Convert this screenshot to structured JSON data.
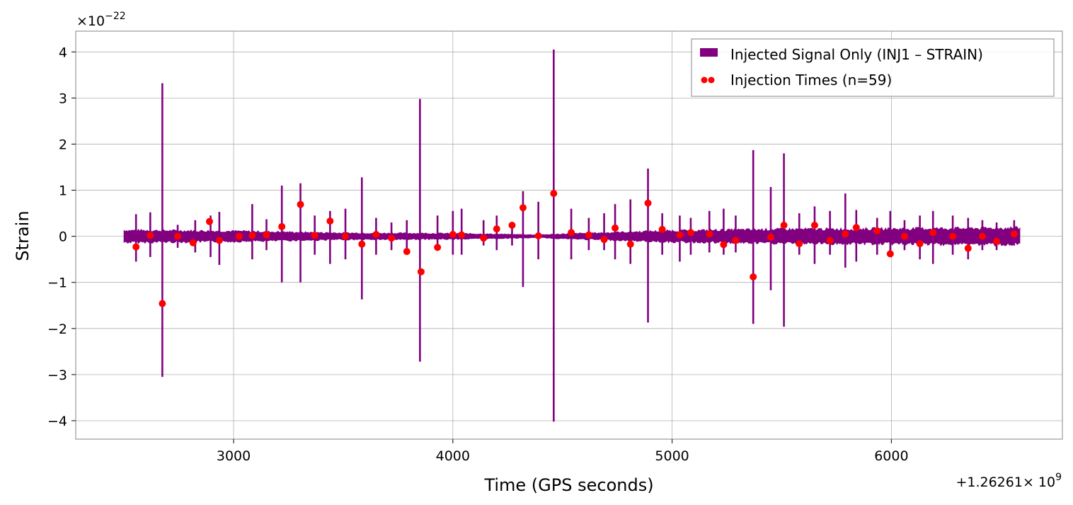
{
  "chart_data": {
    "type": "line",
    "xlabel": "Time (GPS seconds)",
    "ylabel": "Strain",
    "x_offset_label": "+1.26261",
    "x_offset_label_exp_base": "× 10",
    "x_offset_label_exp": "9",
    "y_multiplier_label": "×10",
    "y_multiplier_label_exp": "−22",
    "xlim": [
      2280,
      6780
    ],
    "ylim": [
      -4.4,
      4.45
    ],
    "x_ticks": [
      3000,
      4000,
      5000,
      6000
    ],
    "x_tick_labels": [
      "3000",
      "4000",
      "5000",
      "6000"
    ],
    "y_ticks": [
      4,
      3,
      2,
      1,
      0,
      -1,
      -2,
      -3,
      -4
    ],
    "y_tick_labels": [
      "4",
      "3",
      "2",
      "1",
      "0",
      "−1",
      "−2",
      "−3",
      "−4"
    ],
    "grid": true,
    "legend_position": "top-right",
    "signal_band": {
      "x_start": 2500,
      "x_end": 6590,
      "amplitude_points": [
        [
          2500,
          0.13
        ],
        [
          3000,
          0.11
        ],
        [
          3500,
          0.07
        ],
        [
          4000,
          0.06
        ],
        [
          4400,
          0.03
        ],
        [
          4500,
          0.05
        ],
        [
          5000,
          0.12
        ],
        [
          5500,
          0.15
        ],
        [
          6000,
          0.16
        ],
        [
          6590,
          0.18
        ]
      ]
    },
    "series": [
      {
        "name": "Injected Signal Only (INJ1 – STRAIN)",
        "kind": "line",
        "color": "#800080",
        "spikes": [
          [
            2555,
            0.48,
            -0.55
          ],
          [
            2620,
            0.52,
            -0.45
          ],
          [
            2675,
            3.32,
            -3.05
          ],
          [
            2745,
            0.25,
            -0.25
          ],
          [
            2825,
            0.35,
            -0.35
          ],
          [
            2895,
            0.45,
            -0.45
          ],
          [
            2935,
            0.53,
            -0.62
          ],
          [
            3085,
            0.7,
            -0.5
          ],
          [
            3150,
            0.37,
            -0.3
          ],
          [
            3220,
            1.1,
            -1.0
          ],
          [
            3305,
            1.15,
            -1.0
          ],
          [
            3370,
            0.45,
            -0.4
          ],
          [
            3440,
            0.55,
            -0.6
          ],
          [
            3510,
            0.6,
            -0.5
          ],
          [
            3585,
            1.28,
            -1.37
          ],
          [
            3650,
            0.4,
            -0.4
          ],
          [
            3720,
            0.3,
            -0.3
          ],
          [
            3790,
            0.35,
            -0.4
          ],
          [
            3850,
            2.98,
            -2.72
          ],
          [
            3930,
            0.45,
            -0.3
          ],
          [
            4000,
            0.55,
            -0.4
          ],
          [
            4040,
            0.6,
            -0.4
          ],
          [
            4140,
            0.35,
            -0.2
          ],
          [
            4200,
            0.45,
            -0.3
          ],
          [
            4270,
            0.3,
            -0.2
          ],
          [
            4320,
            0.98,
            -1.1
          ],
          [
            4390,
            0.75,
            -0.5
          ],
          [
            4460,
            4.05,
            -4.02
          ],
          [
            4540,
            0.6,
            -0.5
          ],
          [
            4620,
            0.4,
            -0.3
          ],
          [
            4690,
            0.5,
            -0.3
          ],
          [
            4740,
            0.7,
            -0.5
          ],
          [
            4810,
            0.8,
            -0.6
          ],
          [
            4890,
            1.47,
            -1.87
          ],
          [
            4955,
            0.5,
            -0.4
          ],
          [
            5035,
            0.45,
            -0.55
          ],
          [
            5085,
            0.4,
            -0.4
          ],
          [
            5170,
            0.55,
            -0.35
          ],
          [
            5235,
            0.6,
            -0.4
          ],
          [
            5290,
            0.45,
            -0.35
          ],
          [
            5370,
            1.87,
            -1.9
          ],
          [
            5450,
            1.07,
            -1.17
          ],
          [
            5510,
            1.8,
            -1.96
          ],
          [
            5580,
            0.5,
            -0.4
          ],
          [
            5650,
            0.65,
            -0.6
          ],
          [
            5720,
            0.55,
            -0.4
          ],
          [
            5790,
            0.93,
            -0.68
          ],
          [
            5840,
            0.57,
            -0.55
          ],
          [
            5935,
            0.4,
            -0.4
          ],
          [
            5995,
            0.55,
            -0.4
          ],
          [
            6060,
            0.35,
            -0.3
          ],
          [
            6130,
            0.45,
            -0.5
          ],
          [
            6190,
            0.55,
            -0.6
          ],
          [
            6280,
            0.45,
            -0.4
          ],
          [
            6350,
            0.4,
            -0.5
          ],
          [
            6415,
            0.35,
            -0.3
          ],
          [
            6480,
            0.3,
            -0.3
          ],
          [
            6560,
            0.35,
            -0.2
          ]
        ]
      },
      {
        "name": "Injection Times (n=59)",
        "kind": "scatter",
        "color": "#ff0000",
        "points": [
          [
            2555,
            -0.23
          ],
          [
            2620,
            0.02
          ],
          [
            2675,
            -1.46
          ],
          [
            2745,
            0.0
          ],
          [
            2815,
            -0.14
          ],
          [
            2890,
            0.32
          ],
          [
            2935,
            -0.09
          ],
          [
            3025,
            0.0
          ],
          [
            3085,
            0.02
          ],
          [
            3150,
            0.03
          ],
          [
            3220,
            0.21
          ],
          [
            3305,
            0.69
          ],
          [
            3370,
            0.02
          ],
          [
            3440,
            0.33
          ],
          [
            3510,
            0.0
          ],
          [
            3585,
            -0.17
          ],
          [
            3650,
            0.04
          ],
          [
            3720,
            -0.04
          ],
          [
            3790,
            -0.33
          ],
          [
            3855,
            -0.77
          ],
          [
            3930,
            -0.24
          ],
          [
            4000,
            0.04
          ],
          [
            4040,
            0.03
          ],
          [
            4140,
            -0.04
          ],
          [
            4200,
            0.16
          ],
          [
            4270,
            0.24
          ],
          [
            4320,
            0.62
          ],
          [
            4390,
            0.01
          ],
          [
            4460,
            0.93
          ],
          [
            4540,
            0.08
          ],
          [
            4620,
            0.03
          ],
          [
            4690,
            -0.07
          ],
          [
            4740,
            0.18
          ],
          [
            4810,
            -0.17
          ],
          [
            4890,
            0.72
          ],
          [
            4955,
            0.15
          ],
          [
            5035,
            0.03
          ],
          [
            5085,
            0.08
          ],
          [
            5170,
            0.05
          ],
          [
            5235,
            -0.18
          ],
          [
            5290,
            -0.09
          ],
          [
            5370,
            -0.88
          ],
          [
            5450,
            -0.02
          ],
          [
            5510,
            0.24
          ],
          [
            5580,
            -0.16
          ],
          [
            5650,
            0.24
          ],
          [
            5720,
            -0.09
          ],
          [
            5790,
            0.05
          ],
          [
            5840,
            0.19
          ],
          [
            5935,
            0.12
          ],
          [
            5995,
            -0.38
          ],
          [
            6060,
            0.0
          ],
          [
            6130,
            -0.16
          ],
          [
            6190,
            0.08
          ],
          [
            6280,
            0.0
          ],
          [
            6350,
            -0.26
          ],
          [
            6415,
            0.0
          ],
          [
            6480,
            -0.11
          ],
          [
            6560,
            0.05
          ]
        ]
      }
    ]
  }
}
